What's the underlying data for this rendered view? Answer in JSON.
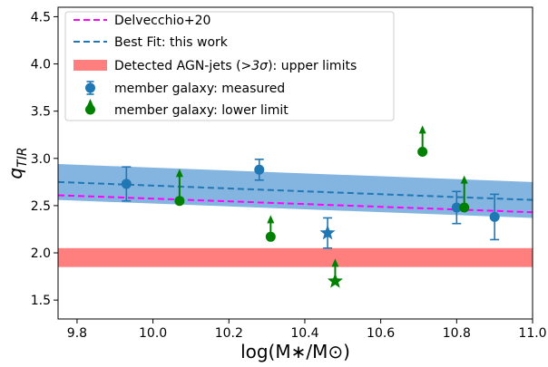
{
  "chart_data": {
    "type": "scatter",
    "xlabel": "log(M∗/M⊙)",
    "ylabel": "q",
    "ylabel_sub": "TIR",
    "xlim": [
      9.75,
      11.0
    ],
    "ylim": [
      1.3,
      4.6
    ],
    "xticks": [
      "9.8",
      "10.0",
      "10.2",
      "10.4",
      "10.6",
      "10.8",
      "11.0"
    ],
    "yticks": [
      "1.5",
      "2.0",
      "2.5",
      "3.0",
      "3.5",
      "4.0",
      "4.5"
    ],
    "legend_position": "top-left",
    "colors": {
      "delvecchio": "#ff00ff",
      "bestfit": "#1f77b4",
      "band": "#5b9bd5",
      "agn": "#ff7f7f",
      "measured": "#1f77b4",
      "lower": "#008000"
    },
    "legend": [
      "Delvecchio+20",
      "Best Fit: this work",
      "Detected AGN-jets ($>3σ$): upper limits",
      "member galaxy: measured",
      "member galaxy: lower limit"
    ],
    "legend_display": {
      "agn_prefix": "Detected AGN-jets (",
      "agn_math": ">3σ",
      "agn_suffix": "): upper limits"
    },
    "series": [
      {
        "name": "Delvecchio+20",
        "kind": "line",
        "x": [
          9.75,
          11.0
        ],
        "y": [
          2.61,
          2.43
        ]
      },
      {
        "name": "Best Fit: this work",
        "kind": "line",
        "x": [
          9.75,
          11.0
        ],
        "y": [
          2.75,
          2.56
        ],
        "band_low": [
          2.56,
          2.37
        ],
        "band_high": [
          2.94,
          2.75
        ]
      },
      {
        "name": "Detected AGN-jets (>3σ): upper limits",
        "kind": "band",
        "y_low": 1.85,
        "y_high": 2.05
      },
      {
        "name": "member galaxy: measured",
        "kind": "errorbar",
        "points": [
          {
            "x": 9.93,
            "y": 2.73,
            "err": 0.18
          },
          {
            "x": 10.28,
            "y": 2.88,
            "err": 0.11
          },
          {
            "x": 10.8,
            "y": 2.48,
            "err": 0.17
          },
          {
            "x": 10.9,
            "y": 2.38,
            "err": 0.24
          }
        ]
      },
      {
        "name": "member galaxy: lower limit",
        "kind": "lower_limit",
        "points": [
          {
            "x": 10.07,
            "y": 2.55,
            "arrow": 0.33
          },
          {
            "x": 10.31,
            "y": 2.17,
            "arrow": 0.22
          },
          {
            "x": 10.71,
            "y": 3.07,
            "arrow": 0.27
          },
          {
            "x": 10.82,
            "y": 2.48,
            "arrow": 0.33
          }
        ]
      },
      {
        "name": "star-measured",
        "kind": "star",
        "points": [
          {
            "x": 10.46,
            "y": 2.21,
            "err": 0.16
          }
        ],
        "color": "#1f77b4"
      },
      {
        "name": "star-lower",
        "kind": "star_lower",
        "points": [
          {
            "x": 10.48,
            "y": 1.7,
            "arrow": 0.23
          }
        ],
        "color": "#008000"
      }
    ]
  }
}
